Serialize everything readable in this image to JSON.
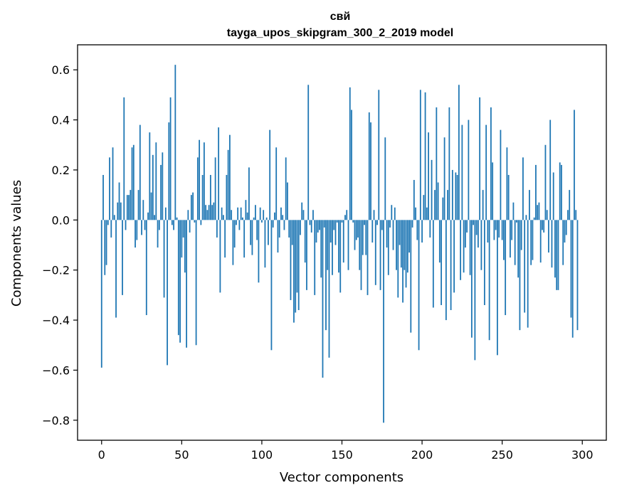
{
  "chart_data": {
    "type": "bar",
    "title": "свй",
    "subtitle": "tayga_upos_skipgram_300_2_2019 model",
    "xlabel": "Vector components",
    "ylabel": "Components values",
    "xlim": [
      -15,
      315
    ],
    "ylim": [
      -0.88,
      0.7
    ],
    "xticks": [
      0,
      50,
      100,
      150,
      200,
      250,
      300
    ],
    "yticks": [
      -0.8,
      -0.6,
      -0.4,
      -0.2,
      0.0,
      0.2,
      0.4,
      0.6
    ],
    "ytick_labels": [
      "−0.8",
      "−0.6",
      "−0.4",
      "−0.2",
      "0.0",
      "0.2",
      "0.4",
      "0.6"
    ],
    "bar_color": "#1f77b4",
    "grid": false,
    "x": "0..299",
    "values": [
      -0.59,
      0.18,
      -0.22,
      -0.18,
      -0.02,
      0.25,
      -0.07,
      0.29,
      0.02,
      -0.39,
      0.07,
      0.15,
      0.07,
      -0.3,
      0.49,
      -0.04,
      0.1,
      0.1,
      0.12,
      0.29,
      0.3,
      -0.11,
      -0.08,
      0.12,
      0.38,
      -0.06,
      0.08,
      -0.04,
      -0.38,
      0.03,
      0.35,
      0.11,
      0.26,
      0.02,
      0.31,
      -0.11,
      -0.04,
      0.22,
      0.27,
      -0.31,
      0.05,
      -0.58,
      0.39,
      0.49,
      -0.02,
      -0.04,
      0.62,
      0.01,
      -0.46,
      -0.49,
      -0.15,
      -0.07,
      -0.21,
      -0.51,
      0.04,
      -0.05,
      0.1,
      0.11,
      -0.01,
      -0.5,
      0.25,
      0.32,
      -0.02,
      0.18,
      0.31,
      0.06,
      0.04,
      0.06,
      0.18,
      0.06,
      0.07,
      0.25,
      -0.07,
      0.37,
      -0.29,
      0.05,
      0.02,
      -0.15,
      0.18,
      0.28,
      0.34,
      0.04,
      -0.18,
      -0.11,
      -0.02,
      0.05,
      -0.04,
      0.05,
      0.01,
      -0.15,
      0.08,
      0.03,
      0.21,
      -0.1,
      -0.14,
      0.01,
      0.06,
      -0.08,
      -0.25,
      0.05,
      -0.01,
      0.04,
      -0.19,
      0.01,
      -0.1,
      0.36,
      -0.52,
      -0.03,
      0.03,
      0.29,
      -0.13,
      -0.07,
      0.05,
      0.02,
      -0.04,
      0.25,
      0.15,
      -0.07,
      -0.32,
      -0.1,
      -0.41,
      -0.37,
      -0.29,
      -0.36,
      -0.06,
      0.07,
      0.04,
      -0.17,
      -0.28,
      0.54,
      -0.02,
      -0.05,
      0.04,
      -0.3,
      -0.09,
      -0.05,
      -0.04,
      -0.23,
      -0.63,
      -0.03,
      -0.44,
      -0.2,
      -0.55,
      -0.09,
      -0.22,
      -0.04,
      -0.1,
      -0.01,
      -0.21,
      -0.29,
      -0.01,
      -0.17,
      0.02,
      0.04,
      -0.2,
      0.53,
      0.44,
      -0.01,
      -0.12,
      -0.08,
      -0.07,
      -0.2,
      -0.28,
      -0.14,
      -0.02,
      -0.14,
      -0.3,
      0.43,
      0.39,
      -0.09,
      0.04,
      -0.26,
      -0.02,
      0.52,
      -0.28,
      -0.04,
      -0.81,
      0.33,
      -0.11,
      -0.22,
      -0.03,
      0.06,
      -0.12,
      0.05,
      -0.2,
      -0.31,
      -0.1,
      -0.19,
      -0.33,
      -0.2,
      -0.27,
      -0.21,
      -0.13,
      -0.45,
      -0.03,
      0.16,
      0.05,
      -0.08,
      -0.52,
      0.52,
      -0.09,
      0.1,
      0.51,
      0.05,
      0.35,
      -0.07,
      0.24,
      -0.35,
      0.12,
      0.45,
      0.15,
      -0.17,
      -0.34,
      0.09,
      0.33,
      -0.4,
      0.12,
      0.45,
      -0.36,
      0.2,
      -0.29,
      0.19,
      0.18,
      0.54,
      -0.24,
      0.38,
      -0.21,
      -0.11,
      -0.05,
      0.4,
      -0.22,
      -0.47,
      -0.02,
      -0.56,
      -0.06,
      -0.11,
      0.49,
      -0.2,
      0.12,
      -0.34,
      0.38,
      -0.09,
      -0.48,
      0.45,
      0.23,
      -0.08,
      -0.04,
      -0.54,
      -0.07,
      0.36,
      -0.08,
      -0.16,
      -0.38,
      0.29,
      0.18,
      -0.15,
      -0.08,
      0.07,
      -0.18,
      -0.01,
      -0.23,
      -0.44,
      -0.12,
      0.25,
      -0.37,
      0.02,
      -0.43,
      0.12,
      -0.18,
      -0.16,
      0.01,
      0.22,
      0.06,
      0.07,
      -0.17,
      -0.04,
      -0.05,
      0.3,
      0.04,
      -0.13,
      0.4,
      -0.19,
      0.19,
      -0.23,
      -0.28,
      -0.28,
      0.23,
      0.22,
      -0.18,
      -0.09,
      -0.06,
      0.04,
      0.12,
      -0.39,
      -0.47,
      0.44,
      0.04,
      -0.44
    ]
  }
}
